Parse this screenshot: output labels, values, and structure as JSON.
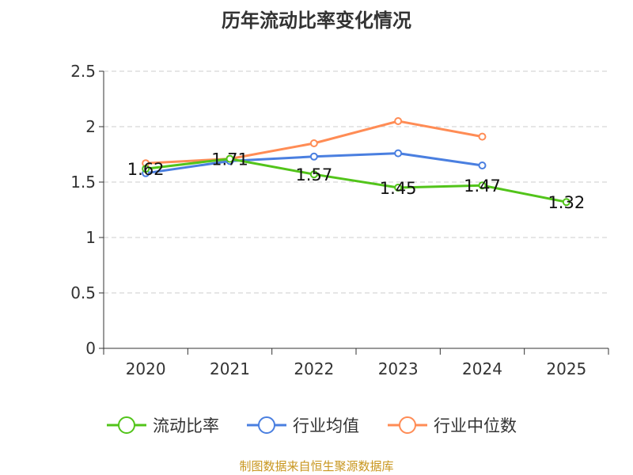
{
  "chart_data": {
    "type": "line",
    "title": "历年流动比率变化情况",
    "categories": [
      "2020",
      "2021",
      "2022",
      "2023",
      "2024",
      "2025"
    ],
    "ylim": [
      0,
      2.5
    ],
    "yticks": [
      "0",
      "0.5",
      "1",
      "1.5",
      "2",
      "2.5"
    ],
    "grid": true,
    "legend_position": "bottom",
    "series": [
      {
        "name": "流动比率",
        "color": "#52c41a",
        "values": [
          1.62,
          1.71,
          1.57,
          1.45,
          1.47,
          1.32
        ],
        "labels": [
          "1.62",
          "1.71",
          "1.57",
          "1.45",
          "1.47",
          "1.32"
        ]
      },
      {
        "name": "行业均值",
        "color": "#4a7fe0",
        "values": [
          1.58,
          1.69,
          1.73,
          1.76,
          1.65,
          null
        ]
      },
      {
        "name": "行业中位数",
        "color": "#ff8c55",
        "values": [
          1.67,
          1.71,
          1.85,
          2.05,
          1.91,
          null
        ]
      }
    ]
  },
  "source": "制图数据来自恒生聚源数据库"
}
